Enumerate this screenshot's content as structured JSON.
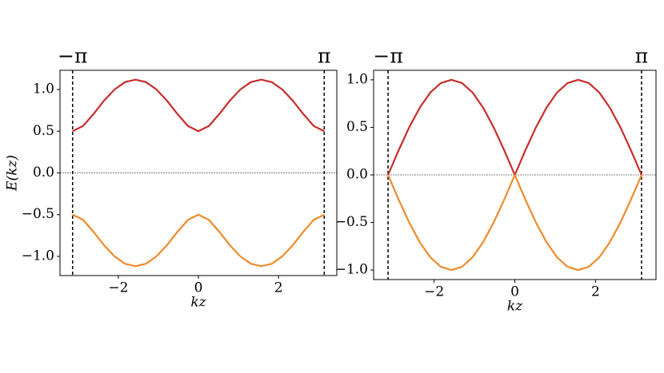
{
  "chart_data": [
    {
      "type": "line",
      "x": [
        -3.142,
        -2.88,
        -2.618,
        -2.356,
        -2.094,
        -1.833,
        -1.571,
        -1.309,
        -1.047,
        -0.785,
        -0.524,
        -0.262,
        0,
        0.262,
        0.524,
        0.785,
        1.047,
        1.309,
        1.571,
        1.833,
        2.094,
        2.356,
        2.618,
        2.88,
        3.142
      ],
      "series": [
        {
          "color": "#c62d2a",
          "values": [
            0.5,
            0.563,
            0.707,
            0.866,
            1.0,
            1.088,
            1.118,
            1.088,
            1.0,
            0.866,
            0.707,
            0.563,
            0.5,
            0.563,
            0.707,
            0.866,
            1.0,
            1.088,
            1.118,
            1.088,
            1.0,
            0.866,
            0.707,
            0.563,
            0.5
          ]
        },
        {
          "color": "#ef8a2a",
          "values": [
            -0.5,
            -0.563,
            -0.707,
            -0.866,
            -1.0,
            -1.088,
            -1.118,
            -1.088,
            -1.0,
            -0.866,
            -0.707,
            -0.563,
            -0.5,
            -0.563,
            -0.707,
            -0.866,
            -1.0,
            -1.088,
            -1.118,
            -1.088,
            -1.0,
            -0.866,
            -0.707,
            -0.563,
            -0.5
          ]
        }
      ],
      "xlim": [
        -3.456,
        3.456
      ],
      "ylim": [
        -1.23,
        1.23
      ],
      "xticks": [
        {
          "value": -2,
          "label": "−2"
        },
        0,
        2
      ],
      "yticks": [
        {
          "value": -1.0,
          "label": "−1.0"
        },
        {
          "value": -0.5,
          "label": "−0.5"
        },
        {
          "value": 0,
          "label": "0.0"
        },
        {
          "value": 0.5,
          "label": "0.5"
        },
        {
          "value": 1.0,
          "label": "1.0"
        }
      ],
      "xlabel": "kz",
      "ylabel": "E(kz)",
      "hline": 0,
      "annotations": [
        {
          "x": -3.1416,
          "text": "−π"
        },
        {
          "x": 3.1416,
          "text": "π"
        }
      ]
    },
    {
      "type": "line",
      "x": [
        -3.142,
        -2.88,
        -2.618,
        -2.356,
        -2.094,
        -1.833,
        -1.571,
        -1.309,
        -1.047,
        -0.785,
        -0.524,
        -0.262,
        0,
        0.262,
        0.524,
        0.785,
        1.047,
        1.309,
        1.571,
        1.833,
        2.094,
        2.356,
        2.618,
        2.88,
        3.142
      ],
      "series": [
        {
          "color": "#c62d2a",
          "values": [
            0,
            0.259,
            0.5,
            0.707,
            0.866,
            0.966,
            1.0,
            0.966,
            0.866,
            0.707,
            0.5,
            0.259,
            0,
            0.259,
            0.5,
            0.707,
            0.866,
            0.966,
            1.0,
            0.966,
            0.866,
            0.707,
            0.5,
            0.259,
            0
          ]
        },
        {
          "color": "#ef8a2a",
          "values": [
            0,
            -0.259,
            -0.5,
            -0.707,
            -0.866,
            -0.966,
            -1.0,
            -0.966,
            -0.866,
            -0.707,
            -0.5,
            -0.259,
            0,
            -0.259,
            -0.5,
            -0.707,
            -0.866,
            -0.966,
            -1.0,
            -0.966,
            -0.866,
            -0.707,
            -0.5,
            -0.259,
            0
          ]
        }
      ],
      "xlim": [
        -3.5,
        3.5
      ],
      "ylim": [
        -1.1,
        1.1
      ],
      "xticks": [
        {
          "value": -2,
          "label": "−2"
        },
        0,
        2
      ],
      "yticks": [
        {
          "value": -1.0,
          "label": "−1.0"
        },
        {
          "value": -0.5,
          "label": "−0.5"
        },
        {
          "value": 0,
          "label": "0.0"
        },
        {
          "value": 0.5,
          "label": "0.5"
        },
        {
          "value": 1.0,
          "label": "1.0"
        }
      ],
      "xlabel": "kz",
      "hline": 0,
      "annotations": [
        {
          "x": -3.1416,
          "text": "−π"
        },
        {
          "x": 3.1416,
          "text": "π"
        }
      ]
    }
  ]
}
